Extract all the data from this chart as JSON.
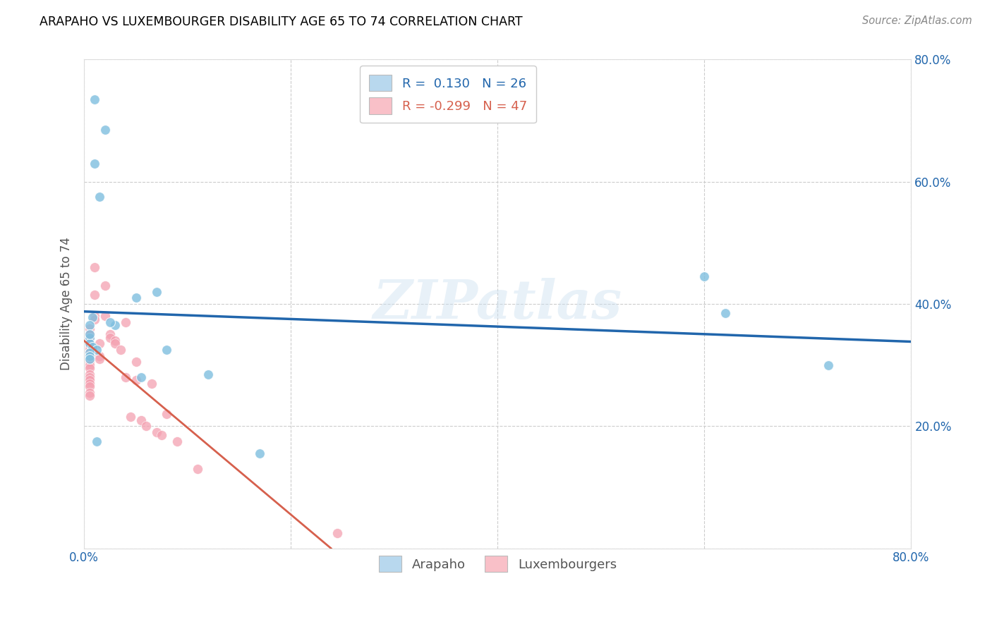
{
  "title": "ARAPAHO VS LUXEMBOURGER DISABILITY AGE 65 TO 74 CORRELATION CHART",
  "source": "Source: ZipAtlas.com",
  "ylabel": "Disability Age 65 to 74",
  "watermark": "ZIPatlas",
  "arapaho_R": 0.13,
  "arapaho_N": 26,
  "luxembourger_R": -0.299,
  "luxembourger_N": 47,
  "xlim": [
    0.0,
    0.8
  ],
  "ylim": [
    0.0,
    0.8
  ],
  "xticks": [
    0.0,
    0.2,
    0.4,
    0.6,
    0.8
  ],
  "yticks": [
    0.0,
    0.2,
    0.4,
    0.6,
    0.8
  ],
  "xticklabels": [
    "0.0%",
    "",
    "",
    "",
    "80.0%"
  ],
  "yticklabels": [
    "",
    "20.0%",
    "40.0%",
    "60.0%",
    "80.0%"
  ],
  "arapaho_color": "#7fbfdf",
  "luxembourger_color": "#f4a0b0",
  "arapaho_line_color": "#2166ac",
  "luxembourger_line_color": "#d6604d",
  "legend_box_color_arapaho": "#b8d8ee",
  "legend_box_color_luxembourger": "#f9c0c8",
  "arapaho_x": [
    0.01,
    0.02,
    0.01,
    0.015,
    0.008,
    0.005,
    0.005,
    0.005,
    0.008,
    0.012,
    0.005,
    0.005,
    0.005,
    0.03,
    0.05,
    0.07,
    0.08,
    0.12,
    0.17,
    0.6,
    0.62,
    0.72,
    0.055,
    0.025,
    0.012,
    0.005
  ],
  "arapaho_y": [
    0.735,
    0.685,
    0.63,
    0.575,
    0.378,
    0.365,
    0.345,
    0.335,
    0.33,
    0.325,
    0.32,
    0.315,
    0.31,
    0.365,
    0.41,
    0.42,
    0.325,
    0.285,
    0.155,
    0.445,
    0.385,
    0.3,
    0.28,
    0.37,
    0.175,
    0.35
  ],
  "luxembourger_x": [
    0.005,
    0.005,
    0.005,
    0.005,
    0.005,
    0.005,
    0.005,
    0.005,
    0.005,
    0.005,
    0.005,
    0.005,
    0.005,
    0.005,
    0.005,
    0.005,
    0.005,
    0.005,
    0.005,
    0.01,
    0.01,
    0.01,
    0.01,
    0.015,
    0.015,
    0.015,
    0.02,
    0.02,
    0.025,
    0.025,
    0.03,
    0.03,
    0.035,
    0.04,
    0.04,
    0.045,
    0.05,
    0.05,
    0.055,
    0.06,
    0.065,
    0.07,
    0.075,
    0.08,
    0.09,
    0.11,
    0.245
  ],
  "luxembourger_y": [
    0.36,
    0.35,
    0.345,
    0.335,
    0.33,
    0.325,
    0.32,
    0.315,
    0.31,
    0.305,
    0.3,
    0.295,
    0.285,
    0.28,
    0.275,
    0.27,
    0.265,
    0.255,
    0.25,
    0.46,
    0.415,
    0.38,
    0.375,
    0.335,
    0.315,
    0.31,
    0.43,
    0.38,
    0.35,
    0.345,
    0.34,
    0.335,
    0.325,
    0.37,
    0.28,
    0.215,
    0.305,
    0.275,
    0.21,
    0.2,
    0.27,
    0.19,
    0.185,
    0.22,
    0.175,
    0.13,
    0.025
  ],
  "background_color": "#ffffff",
  "grid_color": "#cccccc",
  "arapaho_line_x": [
    0.0,
    0.8
  ],
  "luxembourger_line_x_start": 0.0,
  "luxembourger_line_x_end": 0.26
}
